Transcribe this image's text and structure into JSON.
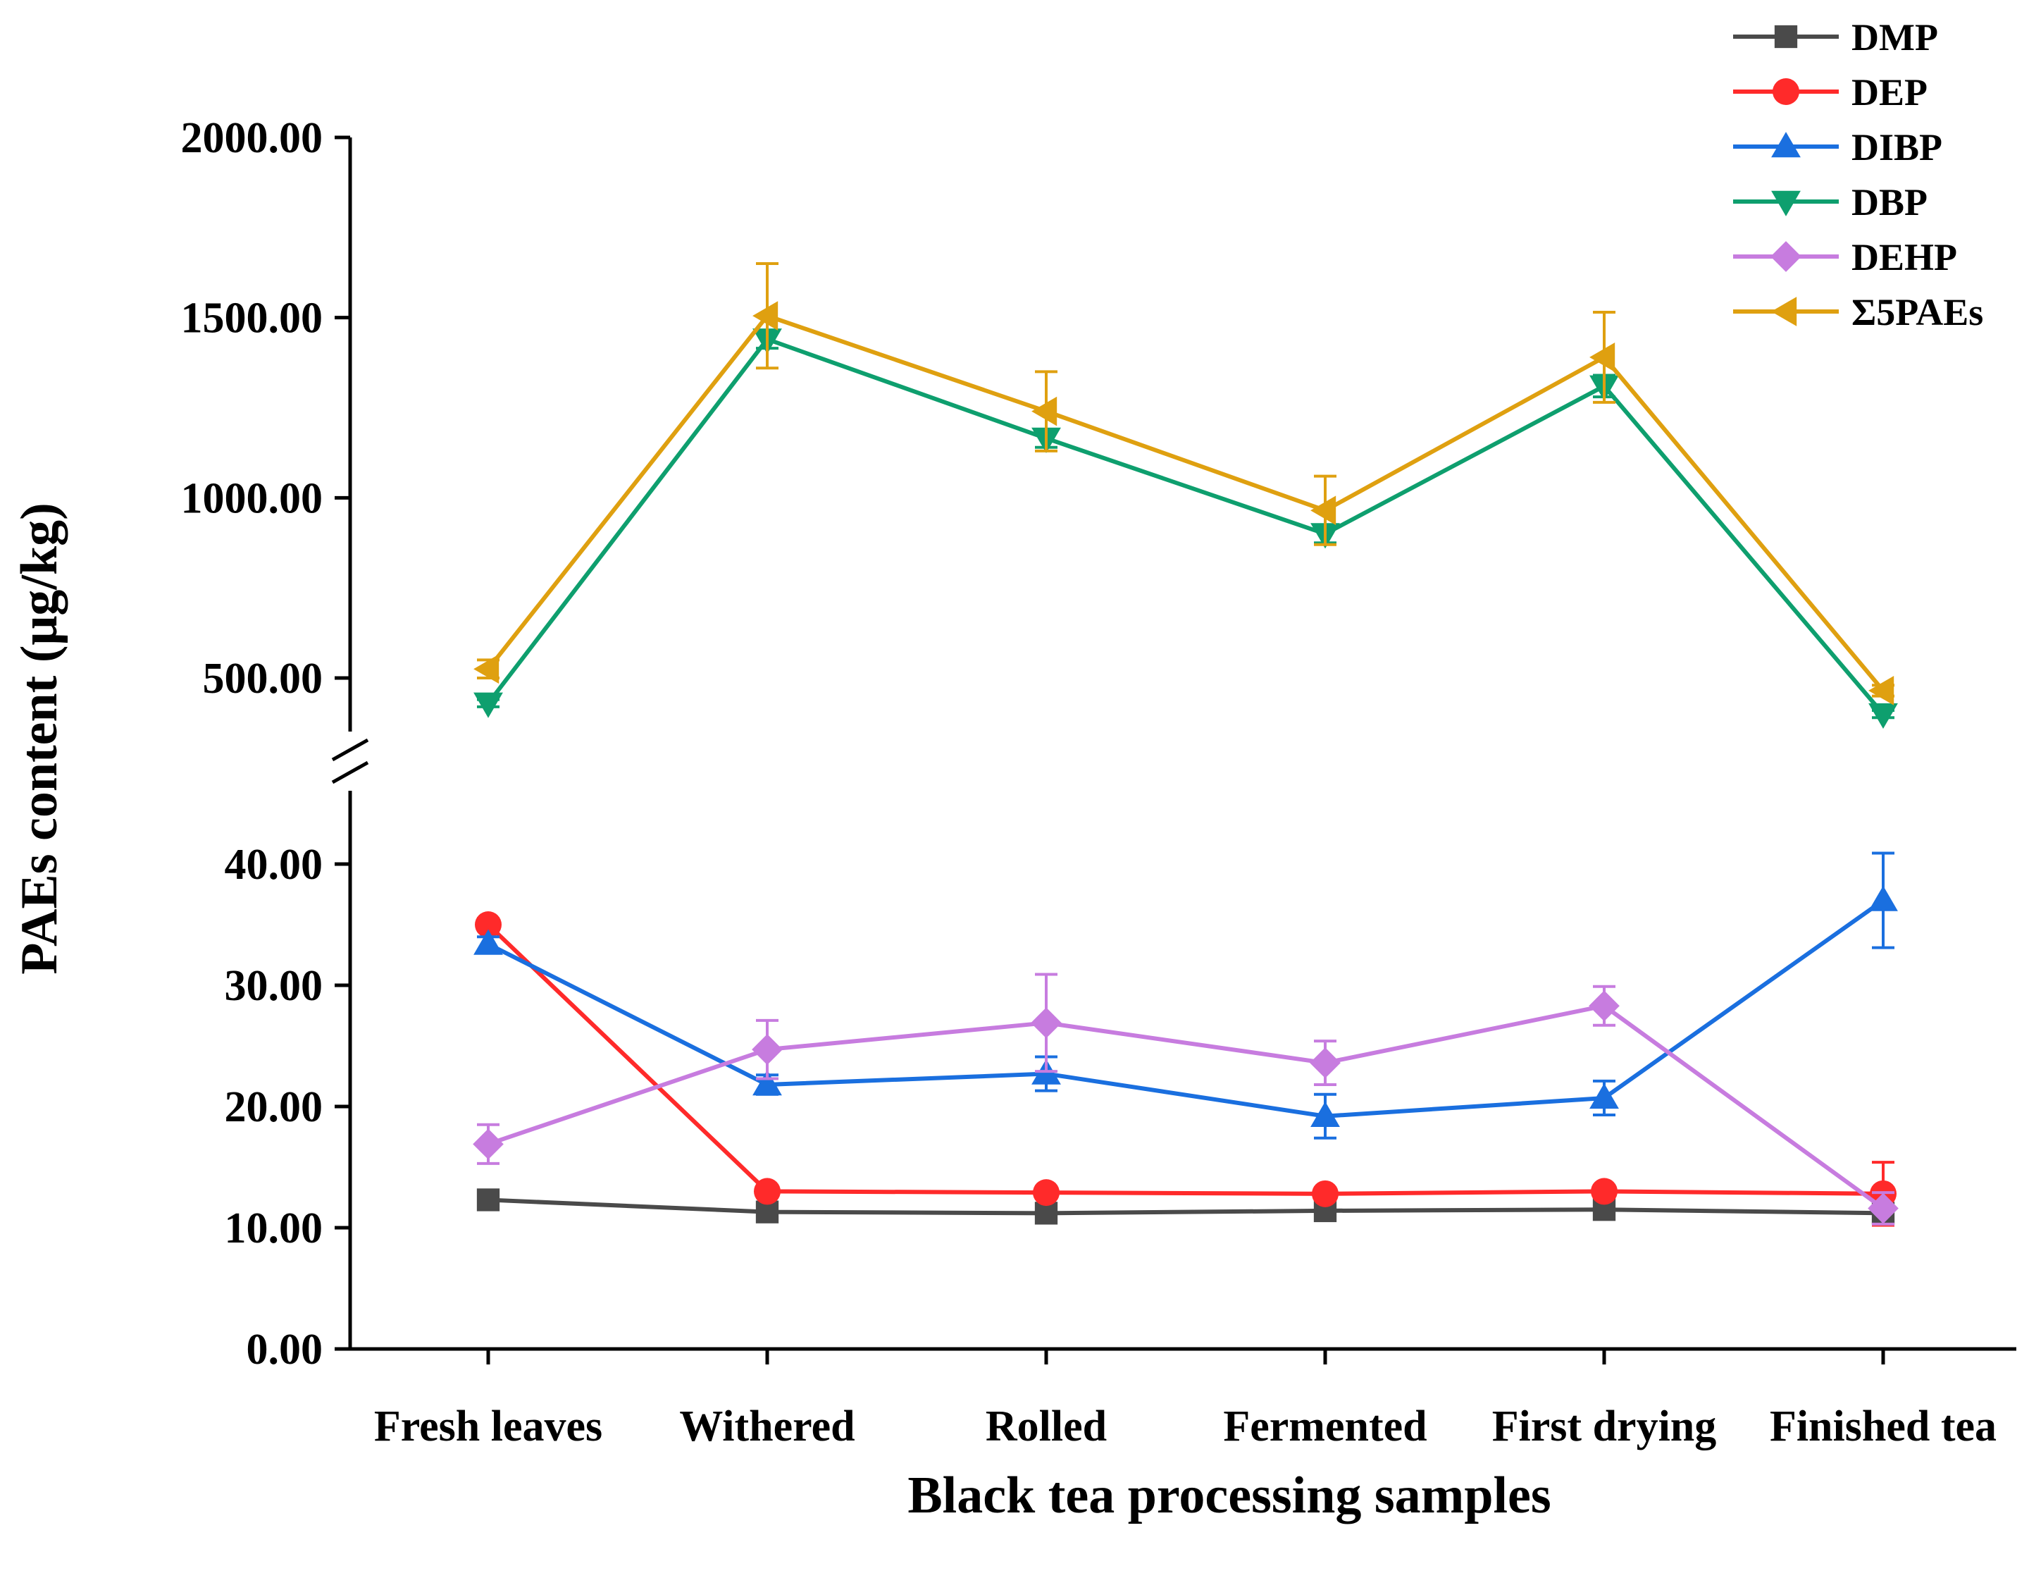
{
  "chart_data": {
    "type": "line",
    "title": "",
    "xlabel": "Black tea processing samples",
    "ylabel": "PAEs content (μg/kg)",
    "categories": [
      "Fresh leaves",
      "Withered",
      "Rolled",
      "Fermented",
      "First drying",
      "Finished tea"
    ],
    "y_axis_break": true,
    "lower_segment": {
      "ylim": [
        0,
        47
      ],
      "ticks": [
        0,
        10,
        20,
        30,
        40
      ],
      "tick_labels": [
        "0.00",
        "10.00",
        "20.00",
        "30.00",
        "40.00"
      ]
    },
    "upper_segment": {
      "ylim": [
        410,
        2000
      ],
      "ticks": [
        500,
        1000,
        1500,
        2000
      ],
      "tick_labels": [
        "500.00",
        "1000.00",
        "1500.00",
        "2000.00"
      ]
    },
    "legend_position": "top-right",
    "series": [
      {
        "name": "DMP",
        "color": "#4a4a4a",
        "marker": "square",
        "values": [
          12.3,
          11.3,
          11.2,
          11.4,
          11.5,
          11.2
        ],
        "errors": [
          0.4,
          0.3,
          0.3,
          0.3,
          0.3,
          0.3
        ]
      },
      {
        "name": "DEP",
        "color": "#ff2a2a",
        "marker": "circle",
        "values": [
          35.0,
          13.0,
          12.9,
          12.8,
          13.0,
          12.8
        ],
        "errors": [
          0.5,
          0.4,
          0.4,
          0.4,
          0.4,
          2.6
        ]
      },
      {
        "name": "DIBP",
        "color": "#1a6fdf",
        "marker": "triangle-up",
        "values": [
          33.4,
          21.8,
          22.7,
          19.2,
          20.7,
          37.0
        ],
        "errors": [
          0.6,
          0.8,
          1.4,
          1.8,
          1.4,
          3.9
        ]
      },
      {
        "name": "DBP",
        "color": "#0e9f6e",
        "marker": "triangle-down",
        "values": [
          430,
          1440,
          1165,
          900,
          1310,
          400
        ],
        "errors": [
          10,
          25,
          25,
          25,
          30,
          10
        ]
      },
      {
        "name": "DEHP",
        "color": "#c77cdf",
        "marker": "diamond",
        "values": [
          16.9,
          24.7,
          26.9,
          23.6,
          28.3,
          11.6
        ],
        "errors": [
          1.6,
          2.4,
          4.0,
          1.8,
          1.6,
          1.3
        ]
      },
      {
        "name": "Σ5PAEs",
        "color": "#dfa010",
        "marker": "triangle-left",
        "values": [
          525,
          1505,
          1240,
          965,
          1390,
          465
        ],
        "errors": [
          25,
          145,
          110,
          95,
          125,
          15
        ]
      }
    ]
  }
}
